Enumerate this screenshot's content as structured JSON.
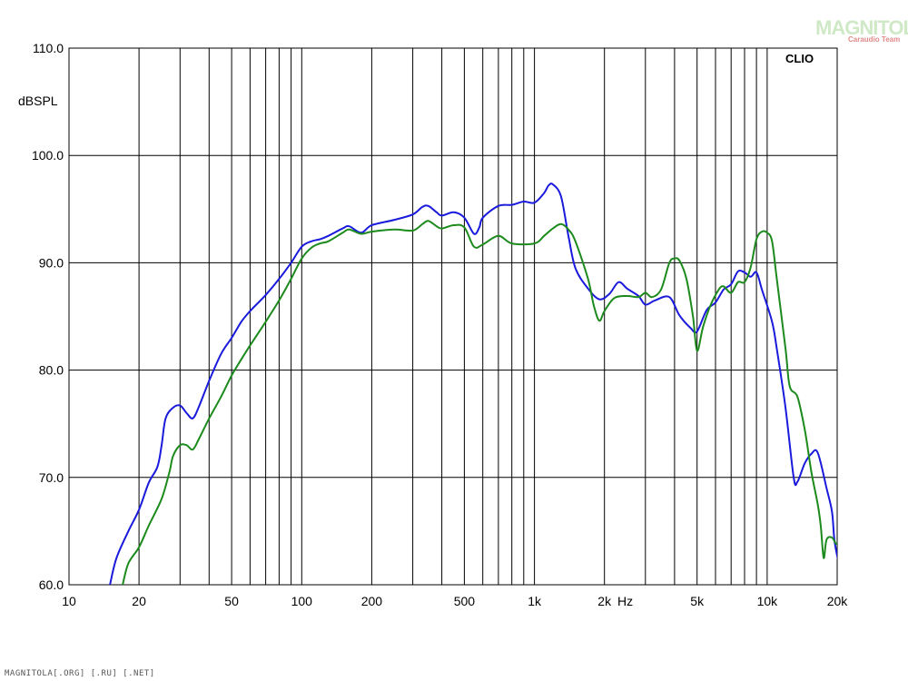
{
  "chart_data": {
    "type": "line",
    "xscale": "log",
    "xlim": [
      10,
      20000
    ],
    "ylim": [
      60,
      110
    ],
    "xlabel": "Hz",
    "ylabel": "dBSPL",
    "grid": true,
    "y_ticks": [
      "110.0",
      "100.0",
      "90.0",
      "80.0",
      "70.0",
      "60.0"
    ],
    "x_ticks": [
      "10",
      "20",
      "50",
      "100",
      "200",
      "500",
      "1k",
      "2k",
      "5k",
      "10k",
      "20k"
    ],
    "series": [
      {
        "color": "#1a1adc",
        "points": [
          [
            15,
            60
          ],
          [
            16,
            62.5
          ],
          [
            18,
            65
          ],
          [
            20,
            67
          ],
          [
            22,
            69.5
          ],
          [
            24,
            71
          ],
          [
            25,
            73
          ],
          [
            26,
            75.5
          ],
          [
            28,
            76.5
          ],
          [
            30,
            76.7
          ],
          [
            32,
            76
          ],
          [
            34,
            75.5
          ],
          [
            36,
            76.5
          ],
          [
            40,
            79
          ],
          [
            45,
            81.5
          ],
          [
            50,
            83
          ],
          [
            55,
            84.5
          ],
          [
            60,
            85.5
          ],
          [
            70,
            87
          ],
          [
            80,
            88.5
          ],
          [
            90,
            90
          ],
          [
            100,
            91.5
          ],
          [
            110,
            92
          ],
          [
            120,
            92.2
          ],
          [
            130,
            92.5
          ],
          [
            150,
            93.2
          ],
          [
            160,
            93.4
          ],
          [
            180,
            92.8
          ],
          [
            200,
            93.5
          ],
          [
            250,
            94
          ],
          [
            300,
            94.5
          ],
          [
            330,
            95.2
          ],
          [
            350,
            95.3
          ],
          [
            380,
            94.7
          ],
          [
            400,
            94.4
          ],
          [
            450,
            94.7
          ],
          [
            500,
            94.2
          ],
          [
            550,
            92.7
          ],
          [
            580,
            93.3
          ],
          [
            600,
            94.2
          ],
          [
            700,
            95.3
          ],
          [
            800,
            95.4
          ],
          [
            900,
            95.7
          ],
          [
            1000,
            95.6
          ],
          [
            1100,
            96.5
          ],
          [
            1150,
            97.2
          ],
          [
            1200,
            97.3
          ],
          [
            1300,
            96.2
          ],
          [
            1400,
            92.5
          ],
          [
            1500,
            89.5
          ],
          [
            1700,
            87.6
          ],
          [
            1900,
            86.6
          ],
          [
            2100,
            87.1
          ],
          [
            2300,
            88.2
          ],
          [
            2500,
            87.6
          ],
          [
            2800,
            86.9
          ],
          [
            3000,
            86.1
          ],
          [
            3300,
            86.5
          ],
          [
            3800,
            86.8
          ],
          [
            4200,
            85.1
          ],
          [
            4700,
            83.9
          ],
          [
            5000,
            83.6
          ],
          [
            5500,
            85.6
          ],
          [
            6000,
            86.3
          ],
          [
            6500,
            87.5
          ],
          [
            7000,
            88
          ],
          [
            7500,
            89.2
          ],
          [
            8000,
            89.1
          ],
          [
            8500,
            88.7
          ],
          [
            9000,
            89.1
          ],
          [
            9500,
            87.5
          ],
          [
            10500,
            84.5
          ],
          [
            11000,
            82
          ],
          [
            12000,
            76.5
          ],
          [
            13000,
            70
          ],
          [
            13500,
            69.6
          ],
          [
            14500,
            71.3
          ],
          [
            15500,
            72.2
          ],
          [
            16500,
            72.3
          ],
          [
            18000,
            69
          ],
          [
            19000,
            66.8
          ],
          [
            19500,
            64
          ],
          [
            20500,
            61.7
          ],
          [
            21000,
            61.2
          ],
          [
            22000,
            60.5
          ],
          [
            23000,
            59.5
          ]
        ]
      },
      {
        "color": "#1c8a1c",
        "points": [
          [
            17,
            60
          ],
          [
            18,
            62
          ],
          [
            20,
            63.5
          ],
          [
            22,
            65.5
          ],
          [
            25,
            68
          ],
          [
            27,
            70.5
          ],
          [
            28,
            72
          ],
          [
            30,
            73
          ],
          [
            32,
            73
          ],
          [
            34,
            72.6
          ],
          [
            36,
            73.5
          ],
          [
            40,
            75.5
          ],
          [
            45,
            77.5
          ],
          [
            50,
            79.5
          ],
          [
            55,
            81
          ],
          [
            60,
            82.3
          ],
          [
            70,
            84.5
          ],
          [
            80,
            86.5
          ],
          [
            90,
            88.5
          ],
          [
            100,
            90.4
          ],
          [
            110,
            91.4
          ],
          [
            120,
            91.8
          ],
          [
            130,
            92
          ],
          [
            150,
            92.8
          ],
          [
            160,
            93.1
          ],
          [
            180,
            92.7
          ],
          [
            200,
            92.9
          ],
          [
            250,
            93.1
          ],
          [
            300,
            93
          ],
          [
            330,
            93.6
          ],
          [
            350,
            93.9
          ],
          [
            380,
            93.4
          ],
          [
            400,
            93.2
          ],
          [
            450,
            93.5
          ],
          [
            500,
            93.3
          ],
          [
            550,
            91.5
          ],
          [
            600,
            91.7
          ],
          [
            700,
            92.5
          ],
          [
            800,
            91.8
          ],
          [
            1000,
            91.8
          ],
          [
            1100,
            92.5
          ],
          [
            1200,
            93.2
          ],
          [
            1300,
            93.6
          ],
          [
            1400,
            93.1
          ],
          [
            1500,
            92
          ],
          [
            1700,
            88.5
          ],
          [
            1800,
            86
          ],
          [
            1900,
            84.6
          ],
          [
            2000,
            85.5
          ],
          [
            2200,
            86.7
          ],
          [
            2500,
            86.9
          ],
          [
            2800,
            86.8
          ],
          [
            3000,
            87.2
          ],
          [
            3200,
            86.8
          ],
          [
            3500,
            87.5
          ],
          [
            3800,
            90
          ],
          [
            4000,
            90.4
          ],
          [
            4200,
            90.2
          ],
          [
            4500,
            88.5
          ],
          [
            4800,
            85
          ],
          [
            5000,
            81.8
          ],
          [
            5300,
            84
          ],
          [
            5700,
            86
          ],
          [
            6200,
            87.5
          ],
          [
            6500,
            87.8
          ],
          [
            7000,
            87.2
          ],
          [
            7500,
            88.2
          ],
          [
            8000,
            88.2
          ],
          [
            8500,
            89.6
          ],
          [
            9000,
            92.2
          ],
          [
            9500,
            92.9
          ],
          [
            10000,
            92.8
          ],
          [
            10500,
            92
          ],
          [
            11000,
            88.5
          ],
          [
            12000,
            82
          ],
          [
            12500,
            78.5
          ],
          [
            13500,
            77.5
          ],
          [
            14500,
            74.5
          ],
          [
            15500,
            70.5
          ],
          [
            16500,
            67.5
          ],
          [
            17000,
            65.5
          ],
          [
            17500,
            62.5
          ],
          [
            18000,
            64.2
          ],
          [
            19000,
            64.4
          ],
          [
            20000,
            63.8
          ],
          [
            21000,
            65
          ],
          [
            22000,
            62.5
          ],
          [
            22500,
            61
          ]
        ]
      }
    ]
  },
  "brand": "CLIO",
  "watermark": {
    "main": "MAGNITOLA",
    "sub": "Caraudio Team"
  },
  "footer": "MAGNITOLA[.ORG] [.RU] [.NET]"
}
